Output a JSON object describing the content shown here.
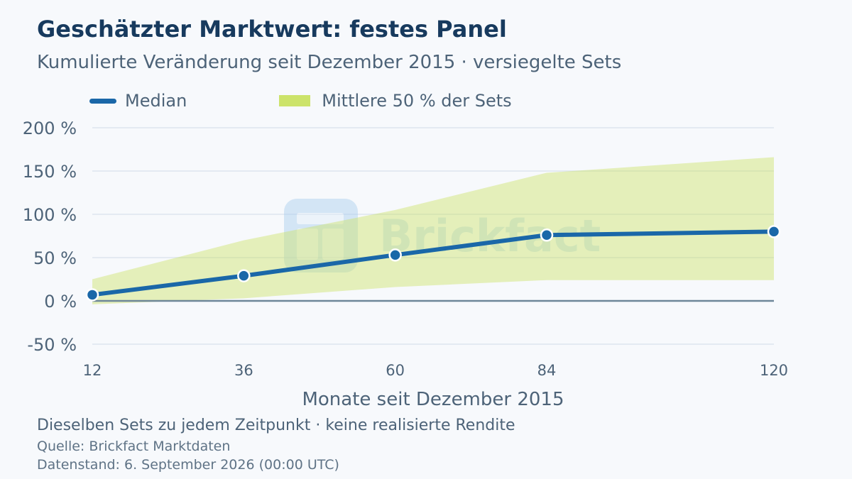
{
  "colors": {
    "median": "#1a67a8",
    "band": "#cce36a",
    "zero_line": "#6e8799",
    "grid": "#dde5ee",
    "tick_text": "#4d6378",
    "watermark": "#a9cdee"
  },
  "watermark": {
    "text": "Brickfact",
    "icon": "brickfact-logo-icon"
  },
  "chart_data": {
    "type": "line",
    "title": "Geschätzter Marktwert: festes Panel",
    "subtitle": "Kumulierte Veränderung seit Dezember 2015 · versiegelte Sets",
    "xlabel": "Monate seit Dezember 2015",
    "ylabel": "",
    "x": [
      12,
      36,
      60,
      84,
      120
    ],
    "x_tick_labels": [
      "12",
      "36",
      "60",
      "84",
      "120"
    ],
    "xlim": [
      12,
      120
    ],
    "ylim": [
      -50,
      200
    ],
    "y_ticks": [
      -50,
      0,
      50,
      100,
      150,
      200
    ],
    "y_tick_labels": [
      "-50 %",
      "0 %",
      "50 %",
      "100 %",
      "150 %",
      "200 %"
    ],
    "grid": true,
    "legend_position": "top-left",
    "series": [
      {
        "name": "Median",
        "type": "line",
        "values": [
          7,
          29,
          53,
          76,
          80
        ]
      }
    ],
    "band": {
      "name": "Mittlere 50 % der Sets",
      "lower": [
        -4,
        3,
        16,
        24,
        24
      ],
      "upper": [
        25,
        70,
        105,
        148,
        166
      ]
    }
  },
  "footer": {
    "note": "Dieselben Sets zu jedem Zeitpunkt · keine realisierte Rendite",
    "source": "Quelle: Brickfact Marktdaten",
    "data_status": "Datenstand: 6. September 2026 (00:00 UTC)"
  }
}
